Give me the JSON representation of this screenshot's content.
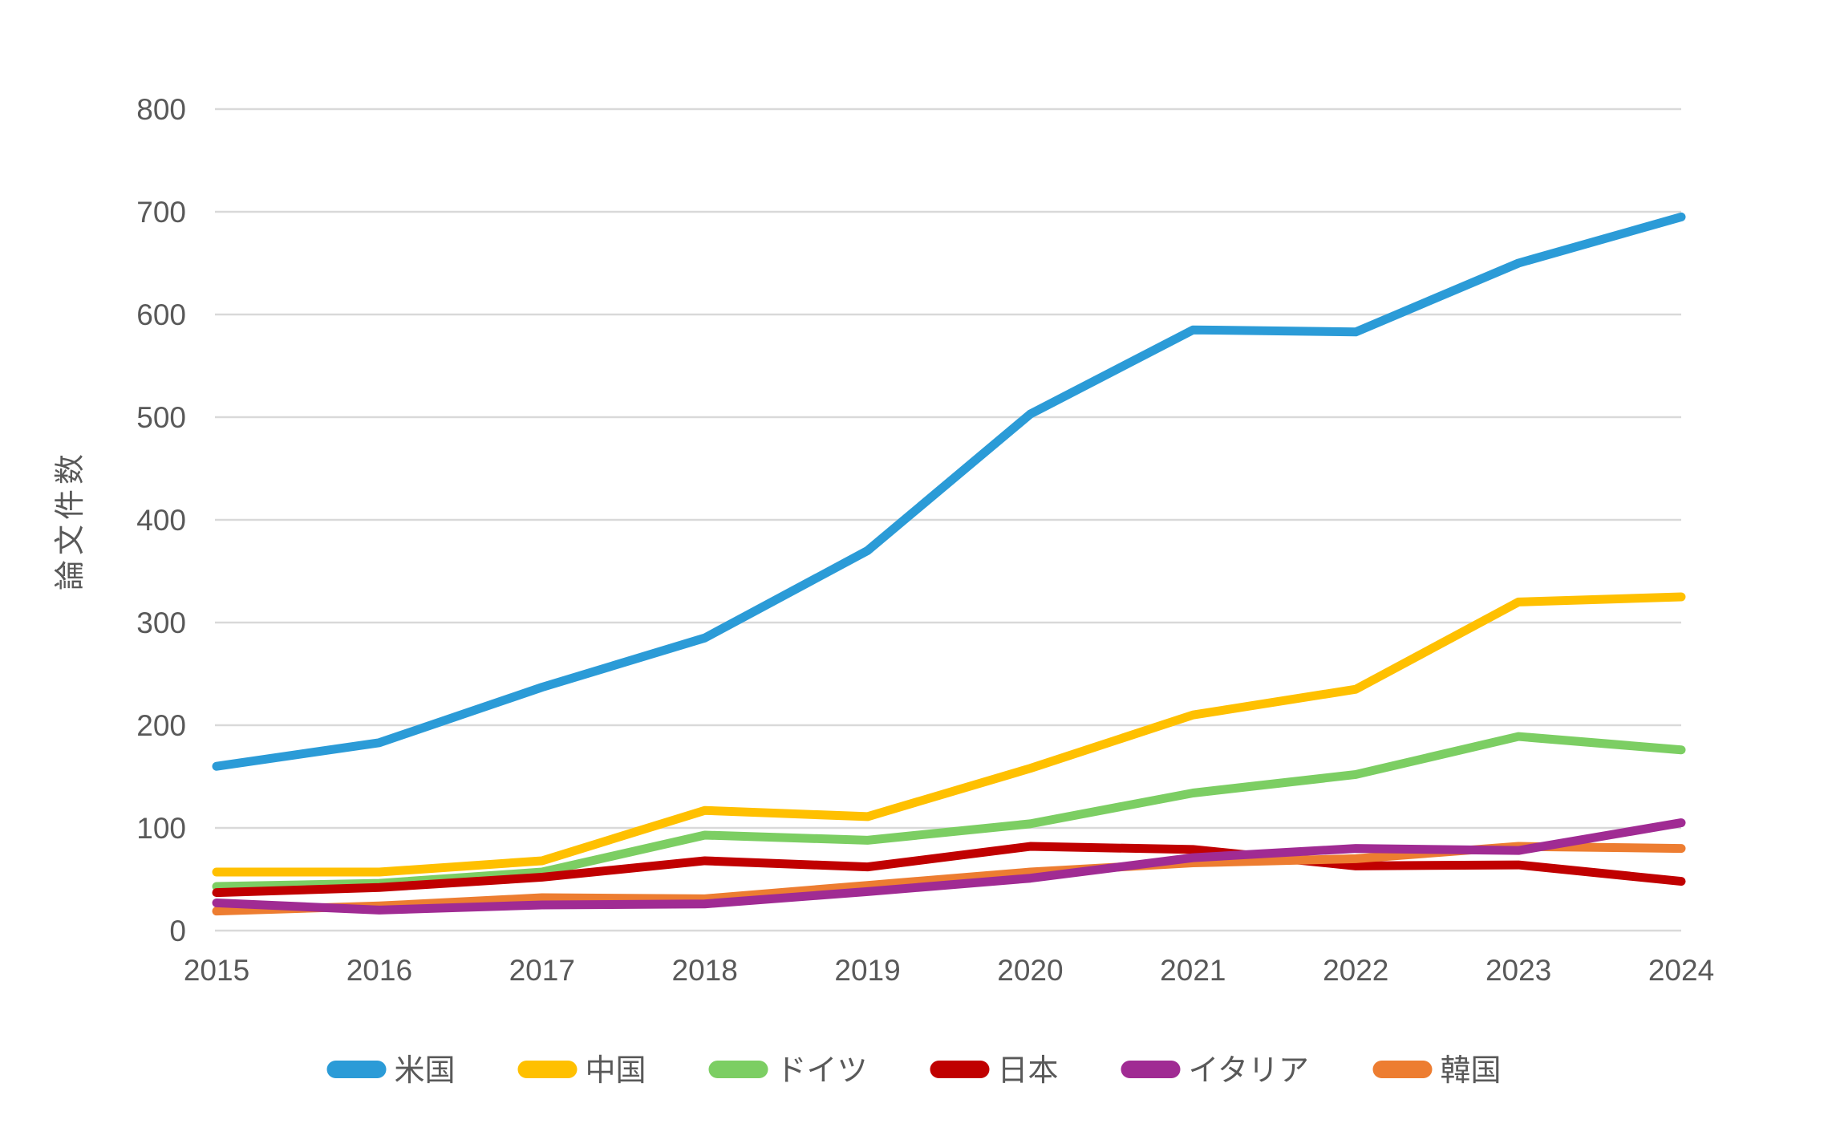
{
  "chart_data": {
    "type": "line",
    "title": "",
    "xlabel": "",
    "ylabel": "論文件数",
    "ylim": [
      0,
      800
    ],
    "ytick_interval": 100,
    "grid": true,
    "legend_position": "bottom",
    "yticks": [
      "0",
      "100",
      "200",
      "300",
      "400",
      "500",
      "600",
      "700",
      "800"
    ],
    "categories": [
      "2015",
      "2016",
      "2017",
      "2018",
      "2019",
      "2020",
      "2021",
      "2022",
      "2023",
      "2024"
    ],
    "series": [
      {
        "name": "米国",
        "color": "#2B9BD7",
        "values": [
          160,
          183,
          237,
          285,
          370,
          503,
          585,
          583,
          650,
          695
        ]
      },
      {
        "name": "中国",
        "color": "#FFC000",
        "values": [
          57,
          57,
          68,
          117,
          111,
          158,
          210,
          235,
          320,
          325
        ]
      },
      {
        "name": "ドイツ",
        "color": "#7CCE63",
        "values": [
          43,
          46,
          57,
          93,
          88,
          104,
          134,
          152,
          189,
          176
        ]
      },
      {
        "name": "日本",
        "color": "#C00000",
        "values": [
          37,
          42,
          52,
          68,
          62,
          82,
          79,
          63,
          64,
          48
        ]
      },
      {
        "name": "イタリア",
        "color": "#A02B93",
        "values": [
          27,
          20,
          25,
          26,
          38,
          51,
          71,
          80,
          78,
          105
        ]
      },
      {
        "name": "韓国",
        "color": "#ED7D31",
        "values": [
          19,
          24,
          32,
          31,
          44,
          57,
          66,
          70,
          82,
          80
        ]
      }
    ],
    "gridline_color": "#D9D9D9",
    "text_color": "#595959"
  }
}
